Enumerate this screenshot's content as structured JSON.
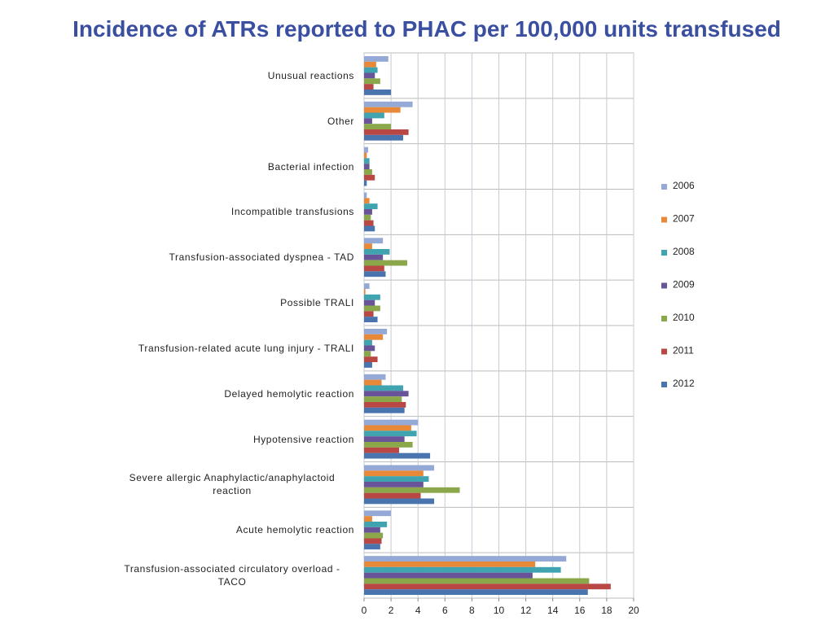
{
  "chart_data": {
    "type": "hbar",
    "title": "Incidence of ATRs reported to PHAC per 100,000 units transfused",
    "categories": [
      "Unusual reactions",
      "Other",
      "Bacterial infection",
      "Incompatible transfusions",
      "Transfusion-associated dyspnea - TAD",
      "Possible TRALI",
      "Transfusion-related acute lung injury - TRALI",
      "Delayed hemolytic reaction",
      "Hypotensive reaction",
      "Severe allergic Anaphylactic/anaphylactoid reaction",
      "Acute hemolytic reaction",
      "Transfusion-associated circulatory overload - TACO"
    ],
    "series": [
      {
        "name": "2006",
        "color": "#95a9d6",
        "values": [
          1.8,
          3.6,
          0.3,
          0.2,
          1.4,
          0.4,
          1.7,
          1.6,
          4.0,
          5.2,
          2.0,
          15.0
        ]
      },
      {
        "name": "2007",
        "color": "#e8893a",
        "values": [
          0.9,
          2.7,
          0.2,
          0.4,
          0.6,
          0.1,
          1.4,
          1.3,
          3.5,
          4.4,
          0.6,
          12.7
        ]
      },
      {
        "name": "2008",
        "color": "#3fa3b0",
        "values": [
          1.0,
          1.5,
          0.4,
          1.0,
          1.9,
          1.2,
          0.6,
          2.9,
          3.9,
          4.8,
          1.7,
          14.6
        ]
      },
      {
        "name": "2009",
        "color": "#6a5499",
        "values": [
          0.8,
          0.6,
          0.4,
          0.6,
          1.4,
          0.8,
          0.8,
          3.3,
          3.0,
          4.4,
          1.2,
          12.5
        ]
      },
      {
        "name": "2010",
        "color": "#8aa84a",
        "values": [
          1.2,
          2.0,
          0.6,
          0.5,
          3.2,
          1.2,
          0.5,
          2.8,
          3.6,
          7.1,
          1.4,
          16.7
        ]
      },
      {
        "name": "2011",
        "color": "#b94845",
        "values": [
          0.7,
          3.3,
          0.8,
          0.7,
          1.5,
          0.7,
          1.0,
          3.1,
          2.6,
          4.2,
          1.3,
          18.3
        ]
      },
      {
        "name": "2012",
        "color": "#4a74ad",
        "values": [
          2.0,
          2.9,
          0.2,
          0.8,
          1.6,
          1.0,
          0.6,
          3.0,
          4.9,
          5.2,
          1.2,
          16.6
        ]
      }
    ],
    "xlim": [
      0,
      20
    ],
    "xticks": [
      0,
      2,
      4,
      6,
      8,
      10,
      12,
      14,
      16,
      18,
      20
    ],
    "grid": true,
    "legend": "right"
  }
}
